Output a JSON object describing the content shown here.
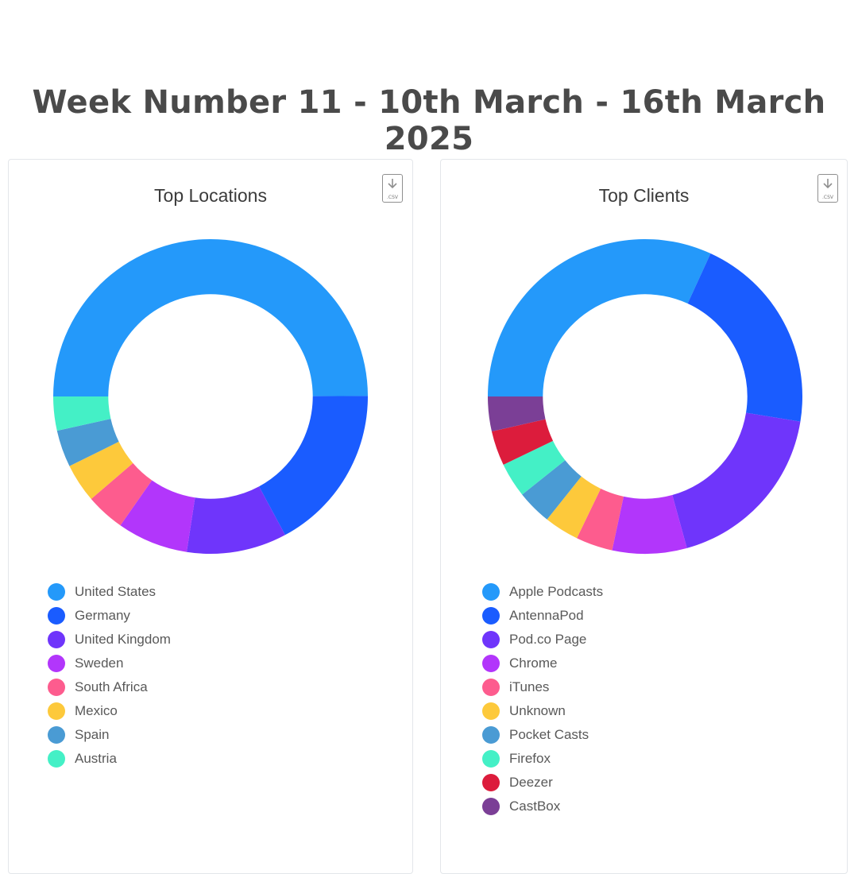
{
  "page": {
    "title": "Week Number 11 - 10th March - 16th March 2025"
  },
  "chart_data": [
    {
      "type": "pie",
      "title": "Top Locations",
      "csv_label": ".CSV",
      "categories": [
        "United States",
        "Germany",
        "United Kingdom",
        "Sweden",
        "South Africa",
        "Mexico",
        "Spain",
        "Austria"
      ],
      "values": [
        50.0,
        17.2,
        10.3,
        7.3,
        4.0,
        4.0,
        3.8,
        3.5
      ],
      "colors": [
        "#2499fa",
        "#1a5cff",
        "#6f35fb",
        "#b236fb",
        "#fd5c8e",
        "#fdc93b",
        "#4a9bd4",
        "#44f0c6"
      ],
      "inner_ratio": 0.65
    },
    {
      "type": "pie",
      "title": "Top Clients",
      "csv_label": ".CSV",
      "categories": [
        "Apple Podcasts",
        "AntennaPod",
        "Pod.co Page",
        "Chrome",
        "iTunes",
        "Unknown",
        "Pocket Casts",
        "Firefox",
        "Deezer",
        "CastBox"
      ],
      "values": [
        31.2,
        20.3,
        17.8,
        7.5,
        3.7,
        3.5,
        3.5,
        3.5,
        3.5,
        3.5
      ],
      "colors": [
        "#2499fa",
        "#1a5cff",
        "#6f35fb",
        "#b236fb",
        "#fd5c8e",
        "#fdc93b",
        "#4a9bd4",
        "#44f0c6",
        "#dc1c3c",
        "#7b3f96"
      ],
      "inner_ratio": 0.65
    }
  ]
}
